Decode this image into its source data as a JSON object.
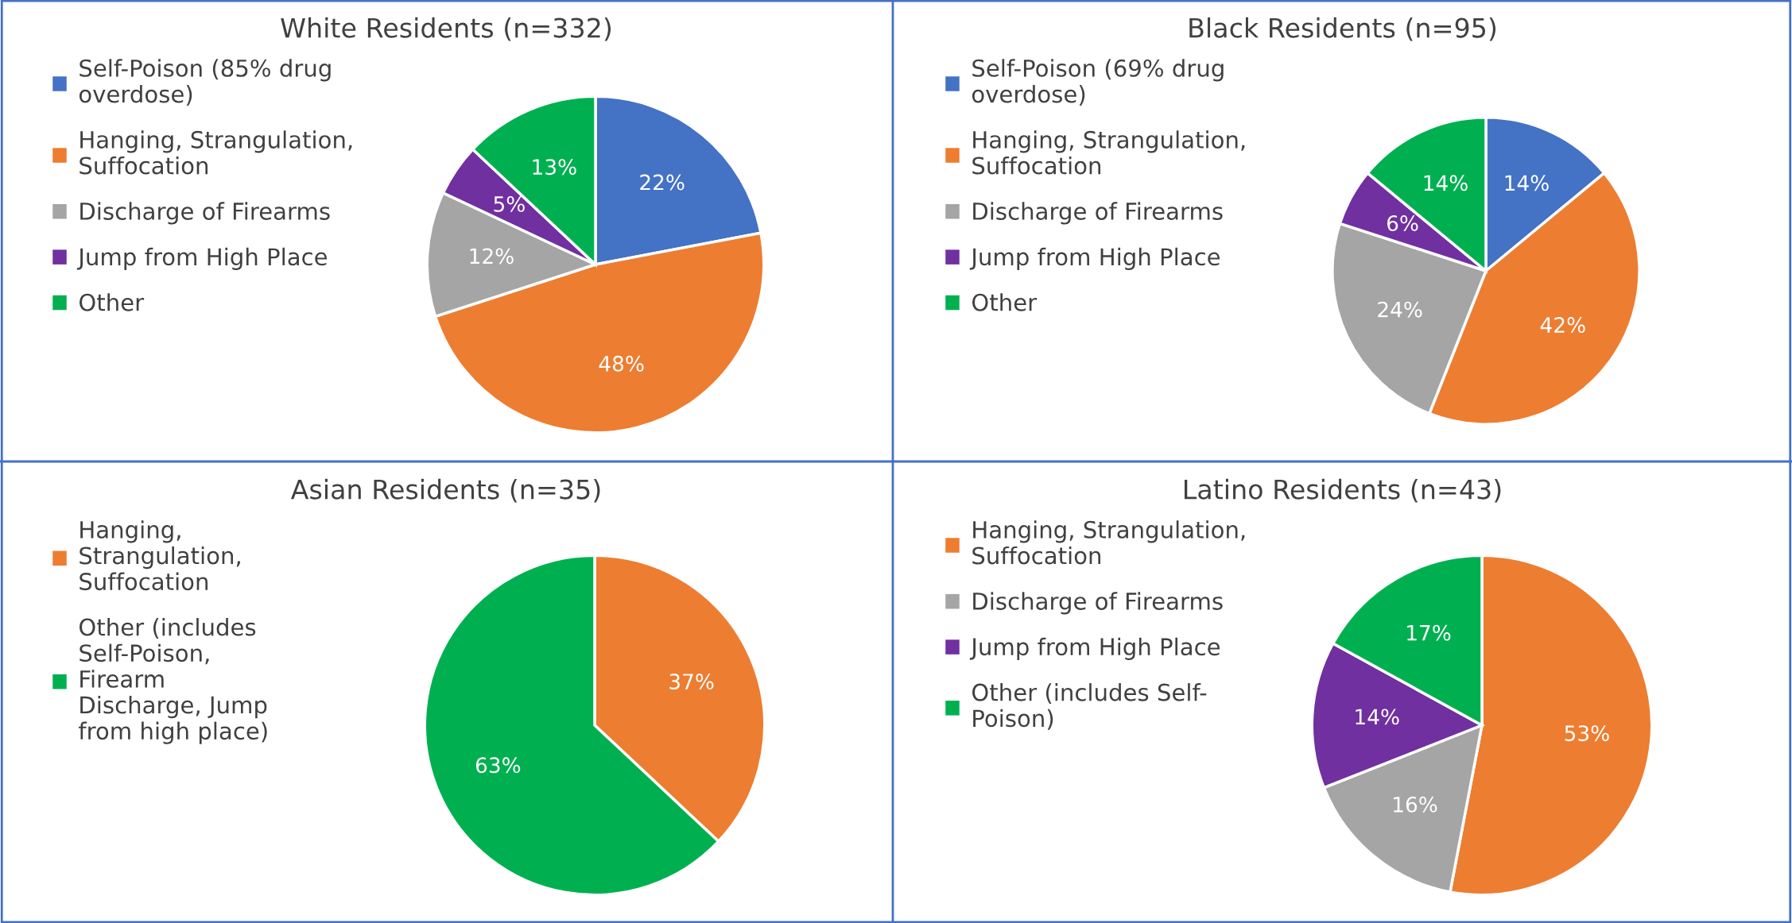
{
  "chart_data": [
    {
      "type": "pie",
      "title": "White Residents (n=332)",
      "categories": [
        "Self-Poison (85% drug overdose)",
        "Hanging, Strangulation, Suffocation",
        "Discharge of Firearms",
        "Jump from High Place",
        "Other"
      ],
      "values": [
        22,
        48,
        12,
        5,
        13
      ],
      "colors": [
        "#4472c4",
        "#ed7d31",
        "#a5a5a5",
        "#7030a0",
        "#00b050"
      ],
      "value_labels": [
        "22%",
        "48%",
        "12%",
        "5%",
        "13%"
      ],
      "legend": "left"
    },
    {
      "type": "pie",
      "title": "Black Residents (n=95)",
      "categories": [
        "Self-Poison (69% drug overdose)",
        "Hanging, Strangulation, Suffocation",
        "Discharge of Firearms",
        "Jump from High Place",
        "Other"
      ],
      "values": [
        14,
        42,
        24,
        6,
        14
      ],
      "colors": [
        "#4472c4",
        "#ed7d31",
        "#a5a5a5",
        "#7030a0",
        "#00b050"
      ],
      "value_labels": [
        "14%",
        "42%",
        "24%",
        "6%",
        "14%"
      ],
      "legend": "left"
    },
    {
      "type": "pie",
      "title": "Asian Residents (n=35)",
      "categories": [
        "Hanging, Strangulation, Suffocation",
        "Other (includes Self-Poison, Firearm Discharge, Jump from high place)"
      ],
      "values": [
        37,
        63
      ],
      "colors": [
        "#ed7d31",
        "#00b050"
      ],
      "value_labels": [
        "37%",
        "63%"
      ],
      "legend": "left"
    },
    {
      "type": "pie",
      "title": "Latino Residents (n=43)",
      "categories": [
        "Hanging, Strangulation, Suffocation",
        "Discharge of Firearms",
        "Jump from High Place",
        "Other (includes Self-Poison)"
      ],
      "values": [
        53,
        16,
        14,
        17
      ],
      "colors": [
        "#ed7d31",
        "#a5a5a5",
        "#7030a0",
        "#00b050"
      ],
      "value_labels": [
        "53%",
        "16%",
        "14%",
        "17%"
      ],
      "legend": "left"
    }
  ]
}
